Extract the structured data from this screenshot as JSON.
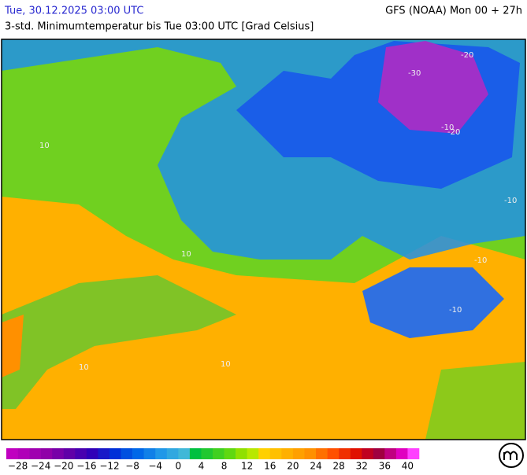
{
  "header": {
    "date": "Tue, 30.12.2025 03:00 UTC",
    "model": "GFS (NOAA) Mon 00 + 27h",
    "subtitle": "3-std. Minimumtemperatur bis Tue 03:00 UTC [Grad Celsius]"
  },
  "map": {
    "contour_labels": [
      "-30",
      "-20",
      "-20",
      "-10",
      "-10",
      "-10",
      "10",
      "10",
      "10",
      "10",
      "-10"
    ]
  },
  "colorbar": {
    "labels": [
      "−28",
      "−24",
      "−20",
      "−16",
      "−12",
      "−8",
      "−4",
      "0",
      "4",
      "8",
      "12",
      "16",
      "20",
      "24",
      "28",
      "32",
      "36",
      "40"
    ],
    "colors": [
      "#c000c0",
      "#b000b8",
      "#a000b0",
      "#9000a8",
      "#7800a8",
      "#6000a8",
      "#4800b0",
      "#3000b8",
      "#1818c8",
      "#0030d8",
      "#0050e0",
      "#0068e8",
      "#1080e8",
      "#2098e8",
      "#30a8e0",
      "#40b8d8",
      "#00c040",
      "#20c830",
      "#40d020",
      "#60d810",
      "#90e000",
      "#b8e800",
      "#ffd000",
      "#ffc000",
      "#ffb000",
      "#ffa000",
      "#ff9000",
      "#ff7000",
      "#ff5000",
      "#f03000",
      "#e01000",
      "#c00020",
      "#a00040",
      "#c00080",
      "#e000c0",
      "#ff40ff"
    ]
  }
}
